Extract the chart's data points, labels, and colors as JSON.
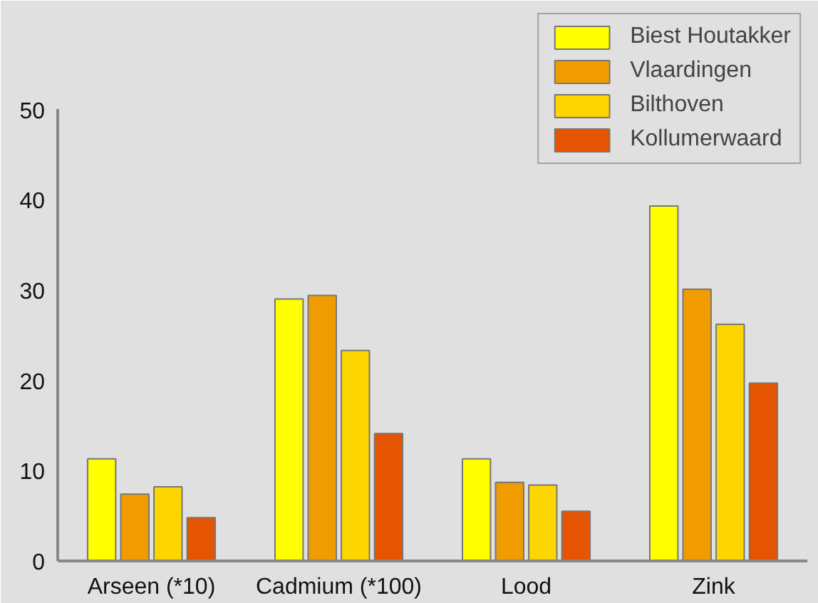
{
  "chart_data": {
    "type": "bar",
    "categories": [
      "Arseen (*10)",
      "Cadmium (*100)",
      "Lood",
      "Zink"
    ],
    "series": [
      {
        "name": "Biest Houtakker",
        "color": "#ffff00",
        "values": [
          11.3,
          29.0,
          11.3,
          39.3
        ]
      },
      {
        "name": "Vlaardingen",
        "color": "#f09c00",
        "values": [
          7.4,
          29.4,
          8.7,
          30.1
        ]
      },
      {
        "name": "Bilthoven",
        "color": "#fdd500",
        "values": [
          8.2,
          23.3,
          8.4,
          26.2
        ]
      },
      {
        "name": "Kollumerwaard",
        "color": "#e55400",
        "values": [
          4.8,
          14.1,
          5.5,
          19.7
        ]
      }
    ],
    "ylim": [
      0,
      50
    ],
    "yticks": [
      0,
      10,
      20,
      30,
      40,
      50
    ],
    "legend": "top right"
  }
}
